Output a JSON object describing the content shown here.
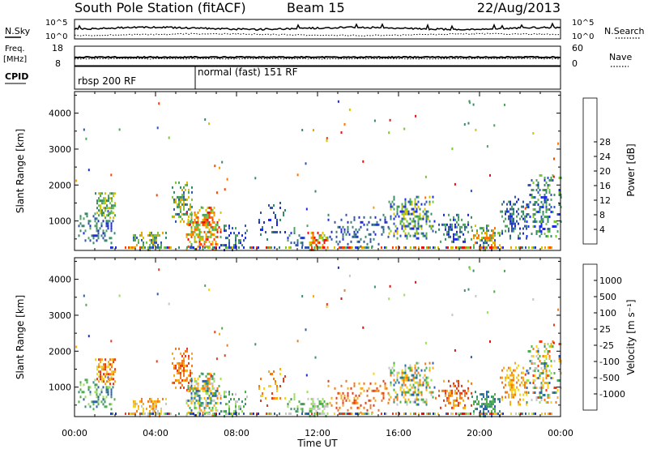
{
  "header": {
    "station": "South Pole Station (fitACF)",
    "beam": "Beam 15",
    "date": "22/Aug/2013"
  },
  "strips": {
    "nsky_label": "N.Sky",
    "nsearch_label": "N.Search",
    "noise_ticks": [
      "10^5",
      "10^0"
    ],
    "freq_label_1": "Freq.",
    "freq_label_2": "[MHz]",
    "freq_ticks": [
      "18",
      "8"
    ],
    "nave_label": "Nave",
    "nave_ticks": [
      "60",
      "0"
    ],
    "cpid_label": "CPID",
    "cpid_1": "rbsp 200 RF",
    "cpid_2": "normal (fast) 151 RF"
  },
  "colors": {
    "power": [
      "#1e28e6",
      "#2f55b0",
      "#3a8a6a",
      "#4ea45c",
      "#7cc43a",
      "#d8c200",
      "#f0a000",
      "#ff7000",
      "#ff4000",
      "#e81010"
    ],
    "velocity": [
      "#1c2fd0",
      "#2b5fb2",
      "#3c8e78",
      "#4fae4c",
      "#9ce05a",
      "#c6c6c6",
      "#f6d21e",
      "#f7ac16",
      "#f27a1a",
      "#ec3a1a",
      "#e41010"
    ]
  },
  "chart_data": [
    {
      "type": "heatmap",
      "name": "power",
      "ylabel": "Slant Range [km]",
      "xlabel": "Time UT",
      "xlim": [
        0,
        24
      ],
      "ylim": [
        180,
        4600
      ],
      "x_ticks": [
        "00:00",
        "04:00",
        "08:00",
        "12:00",
        "16:00",
        "20:00",
        "00:00"
      ],
      "y_ticks": [
        1000,
        2000,
        3000,
        4000
      ],
      "colorbar_label": "Power [dB]",
      "colorbar_ticks": [
        4,
        8,
        12,
        16,
        20,
        24,
        28
      ],
      "patches": [
        {
          "t0": 0.1,
          "t1": 2.0,
          "r0": 400,
          "r1": 1300,
          "d": 0.35,
          "lvl": [
            0,
            3
          ]
        },
        {
          "t0": 1.0,
          "t1": 2.0,
          "r0": 1100,
          "r1": 1800,
          "d": 0.6,
          "lvl": [
            2,
            5
          ]
        },
        {
          "t0": 2.8,
          "t1": 4.5,
          "r0": 200,
          "r1": 700,
          "d": 0.6,
          "lvl": [
            1,
            6
          ]
        },
        {
          "t0": 4.8,
          "t1": 5.8,
          "r0": 900,
          "r1": 2100,
          "d": 0.55,
          "lvl": [
            1,
            6
          ]
        },
        {
          "t0": 5.5,
          "t1": 7.2,
          "r0": 200,
          "r1": 1400,
          "d": 0.7,
          "lvl": [
            3,
            9
          ]
        },
        {
          "t0": 7.2,
          "t1": 8.5,
          "r0": 200,
          "r1": 900,
          "d": 0.35,
          "lvl": [
            0,
            3
          ]
        },
        {
          "t0": 9.0,
          "t1": 10.5,
          "r0": 500,
          "r1": 1600,
          "d": 0.25,
          "lvl": [
            0,
            2
          ]
        },
        {
          "t0": 10.5,
          "t1": 11.5,
          "r0": 300,
          "r1": 900,
          "d": 0.35,
          "lvl": [
            0,
            3
          ]
        },
        {
          "t0": 11.5,
          "t1": 12.5,
          "r0": 200,
          "r1": 700,
          "d": 0.7,
          "lvl": [
            3,
            9
          ]
        },
        {
          "t0": 12.5,
          "t1": 15.5,
          "r0": 300,
          "r1": 1200,
          "d": 0.25,
          "lvl": [
            0,
            2
          ]
        },
        {
          "t0": 15.5,
          "t1": 17.8,
          "r0": 500,
          "r1": 1700,
          "d": 0.5,
          "lvl": [
            0,
            5
          ]
        },
        {
          "t0": 17.8,
          "t1": 19.6,
          "r0": 400,
          "r1": 1200,
          "d": 0.35,
          "lvl": [
            0,
            3
          ]
        },
        {
          "t0": 19.6,
          "t1": 21.0,
          "r0": 200,
          "r1": 900,
          "d": 0.55,
          "lvl": [
            1,
            7
          ]
        },
        {
          "t0": 21.0,
          "t1": 22.3,
          "r0": 500,
          "r1": 1700,
          "d": 0.35,
          "lvl": [
            0,
            3
          ]
        },
        {
          "t0": 22.3,
          "t1": 24.0,
          "r0": 600,
          "r1": 2300,
          "d": 0.45,
          "lvl": [
            0,
            4
          ]
        }
      ]
    },
    {
      "type": "heatmap",
      "name": "velocity",
      "ylabel": "Slant Range [km]",
      "xlabel": "Time UT",
      "xlim": [
        0,
        24
      ],
      "ylim": [
        180,
        4600
      ],
      "x_ticks": [
        "00:00",
        "04:00",
        "08:00",
        "12:00",
        "16:00",
        "20:00",
        "00:00"
      ],
      "y_ticks": [
        1000,
        2000,
        3000,
        4000
      ],
      "colorbar_label": "Velocity [m s⁻¹]",
      "colorbar_ticks": [
        "1000",
        "500",
        "100",
        "25",
        "-25",
        "-100",
        "-500",
        "-1000"
      ],
      "patches": [
        {
          "t0": 0.1,
          "t1": 2.0,
          "r0": 400,
          "r1": 1300,
          "d": 0.35,
          "lvl": [
            1,
            4
          ]
        },
        {
          "t0": 1.0,
          "t1": 2.0,
          "r0": 1100,
          "r1": 1800,
          "d": 0.6,
          "lvl": [
            6,
            9
          ]
        },
        {
          "t0": 2.8,
          "t1": 4.5,
          "r0": 200,
          "r1": 700,
          "d": 0.6,
          "lvl": [
            5,
            8
          ]
        },
        {
          "t0": 4.8,
          "t1": 5.8,
          "r0": 900,
          "r1": 2100,
          "d": 0.55,
          "lvl": [
            7,
            9
          ]
        },
        {
          "t0": 5.5,
          "t1": 7.2,
          "r0": 200,
          "r1": 1400,
          "d": 0.7,
          "lvl": [
            1,
            8
          ]
        },
        {
          "t0": 7.2,
          "t1": 8.5,
          "r0": 200,
          "r1": 900,
          "d": 0.35,
          "lvl": [
            2,
            5
          ]
        },
        {
          "t0": 9.0,
          "t1": 10.5,
          "r0": 500,
          "r1": 1600,
          "d": 0.25,
          "lvl": [
            6,
            9
          ]
        },
        {
          "t0": 10.5,
          "t1": 11.5,
          "r0": 300,
          "r1": 900,
          "d": 0.35,
          "lvl": [
            2,
            4
          ]
        },
        {
          "t0": 11.5,
          "t1": 12.5,
          "r0": 200,
          "r1": 700,
          "d": 0.7,
          "lvl": [
            3,
            5
          ]
        },
        {
          "t0": 12.5,
          "t1": 15.5,
          "r0": 300,
          "r1": 1200,
          "d": 0.25,
          "lvl": [
            7,
            9
          ]
        },
        {
          "t0": 15.5,
          "t1": 17.8,
          "r0": 500,
          "r1": 1700,
          "d": 0.5,
          "lvl": [
            1,
            8
          ]
        },
        {
          "t0": 17.8,
          "t1": 19.6,
          "r0": 400,
          "r1": 1200,
          "d": 0.35,
          "lvl": [
            7,
            9
          ]
        },
        {
          "t0": 19.6,
          "t1": 21.0,
          "r0": 200,
          "r1": 900,
          "d": 0.55,
          "lvl": [
            1,
            3
          ]
        },
        {
          "t0": 21.0,
          "t1": 22.3,
          "r0": 500,
          "r1": 1700,
          "d": 0.35,
          "lvl": [
            6,
            8
          ]
        },
        {
          "t0": 22.3,
          "t1": 24.0,
          "r0": 600,
          "r1": 2300,
          "d": 0.45,
          "lvl": [
            1,
            9
          ]
        }
      ]
    }
  ]
}
